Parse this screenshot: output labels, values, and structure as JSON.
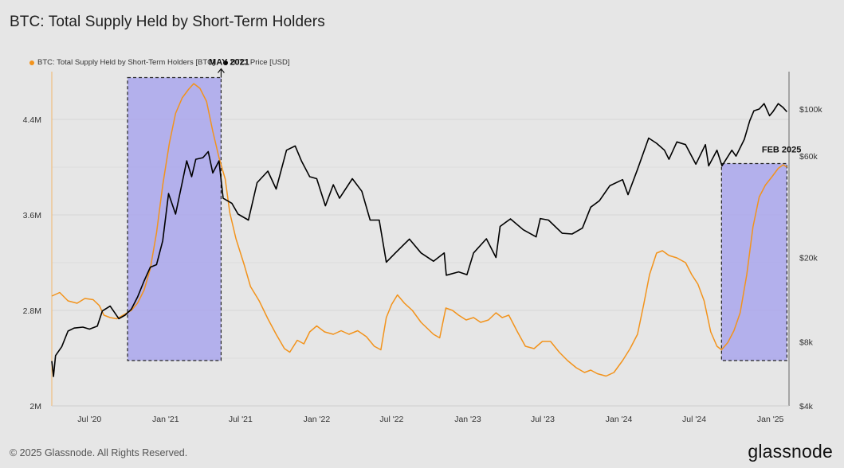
{
  "title": "BTC: Total Supply Held by Short-Term Holders",
  "footer": "© 2025 Glassnode. All Rights Reserved.",
  "brand": "glassnode",
  "colors": {
    "background": "#e6e6e6",
    "supply": "#f2931c",
    "price": "#000000",
    "highlight": "#a9a6ec"
  },
  "chart_data": {
    "type": "line",
    "title": "BTC: Total Supply Held by Short-Term Holders",
    "series": [
      {
        "name": "BTC: Total Supply Held by Short-Term Holders [BTC]",
        "axis": "left",
        "color": "#f2931c",
        "points": [
          [
            "2020-04-01",
            2.92
          ],
          [
            "2020-04-20",
            2.95
          ],
          [
            "2020-05-10",
            2.88
          ],
          [
            "2020-06-01",
            2.86
          ],
          [
            "2020-06-20",
            2.9
          ],
          [
            "2020-07-10",
            2.89
          ],
          [
            "2020-07-25",
            2.84
          ],
          [
            "2020-08-05",
            2.76
          ],
          [
            "2020-08-20",
            2.74
          ],
          [
            "2020-09-05",
            2.73
          ],
          [
            "2020-09-20",
            2.76
          ],
          [
            "2020-10-10",
            2.8
          ],
          [
            "2020-10-25",
            2.86
          ],
          [
            "2020-11-10",
            2.97
          ],
          [
            "2020-11-25",
            3.15
          ],
          [
            "2020-12-10",
            3.45
          ],
          [
            "2020-12-25",
            3.85
          ],
          [
            "2021-01-10",
            4.2
          ],
          [
            "2021-01-25",
            4.45
          ],
          [
            "2021-02-10",
            4.58
          ],
          [
            "2021-02-25",
            4.65
          ],
          [
            "2021-03-10",
            4.7
          ],
          [
            "2021-03-25",
            4.66
          ],
          [
            "2021-04-10",
            4.55
          ],
          [
            "2021-04-25",
            4.3
          ],
          [
            "2021-05-10",
            4.08
          ],
          [
            "2021-05-25",
            3.9
          ],
          [
            "2021-06-05",
            3.62
          ],
          [
            "2021-06-20",
            3.4
          ],
          [
            "2021-07-10",
            3.18
          ],
          [
            "2021-07-25",
            3.0
          ],
          [
            "2021-08-15",
            2.88
          ],
          [
            "2021-09-05",
            2.73
          ],
          [
            "2021-09-25",
            2.6
          ],
          [
            "2021-10-15",
            2.48
          ],
          [
            "2021-10-28",
            2.45
          ],
          [
            "2021-11-15",
            2.55
          ],
          [
            "2021-12-01",
            2.52
          ],
          [
            "2021-12-15",
            2.62
          ],
          [
            "2022-01-01",
            2.67
          ],
          [
            "2022-01-20",
            2.62
          ],
          [
            "2022-02-10",
            2.6
          ],
          [
            "2022-03-01",
            2.63
          ],
          [
            "2022-03-20",
            2.6
          ],
          [
            "2022-04-10",
            2.63
          ],
          [
            "2022-05-01",
            2.58
          ],
          [
            "2022-05-20",
            2.5
          ],
          [
            "2022-06-05",
            2.47
          ],
          [
            "2022-06-18",
            2.74
          ],
          [
            "2022-07-01",
            2.85
          ],
          [
            "2022-07-15",
            2.93
          ],
          [
            "2022-08-01",
            2.86
          ],
          [
            "2022-08-20",
            2.8
          ],
          [
            "2022-09-10",
            2.7
          ],
          [
            "2022-09-25",
            2.65
          ],
          [
            "2022-10-10",
            2.6
          ],
          [
            "2022-10-25",
            2.57
          ],
          [
            "2022-11-09",
            2.82
          ],
          [
            "2022-11-25",
            2.8
          ],
          [
            "2022-12-10",
            2.76
          ],
          [
            "2022-12-28",
            2.72
          ],
          [
            "2023-01-15",
            2.74
          ],
          [
            "2023-02-01",
            2.7
          ],
          [
            "2023-02-20",
            2.72
          ],
          [
            "2023-03-10",
            2.78
          ],
          [
            "2023-03-25",
            2.74
          ],
          [
            "2023-04-10",
            2.76
          ],
          [
            "2023-05-01",
            2.62
          ],
          [
            "2023-05-20",
            2.5
          ],
          [
            "2023-06-10",
            2.48
          ],
          [
            "2023-06-30",
            2.54
          ],
          [
            "2023-07-20",
            2.54
          ],
          [
            "2023-08-10",
            2.45
          ],
          [
            "2023-08-30",
            2.38
          ],
          [
            "2023-09-20",
            2.32
          ],
          [
            "2023-10-10",
            2.28
          ],
          [
            "2023-10-25",
            2.3
          ],
          [
            "2023-11-10",
            2.27
          ],
          [
            "2023-12-01",
            2.25
          ],
          [
            "2023-12-20",
            2.28
          ],
          [
            "2024-01-10",
            2.38
          ],
          [
            "2024-01-28",
            2.48
          ],
          [
            "2024-02-15",
            2.6
          ],
          [
            "2024-03-01",
            2.85
          ],
          [
            "2024-03-15",
            3.1
          ],
          [
            "2024-04-01",
            3.28
          ],
          [
            "2024-04-15",
            3.3
          ],
          [
            "2024-05-01",
            3.26
          ],
          [
            "2024-05-20",
            3.24
          ],
          [
            "2024-06-10",
            3.2
          ],
          [
            "2024-06-25",
            3.1
          ],
          [
            "2024-07-10",
            3.02
          ],
          [
            "2024-07-25",
            2.88
          ],
          [
            "2024-08-10",
            2.62
          ],
          [
            "2024-08-25",
            2.5
          ],
          [
            "2024-09-05",
            2.47
          ],
          [
            "2024-09-20",
            2.53
          ],
          [
            "2024-10-05",
            2.63
          ],
          [
            "2024-10-20",
            2.78
          ],
          [
            "2024-11-05",
            3.1
          ],
          [
            "2024-11-20",
            3.5
          ],
          [
            "2024-12-05",
            3.75
          ],
          [
            "2024-12-20",
            3.85
          ],
          [
            "2025-01-05",
            3.92
          ],
          [
            "2025-01-20",
            3.99
          ],
          [
            "2025-02-01",
            4.02
          ],
          [
            "2025-02-10",
            4.0
          ]
        ]
      },
      {
        "name": "BTC: Price [USD]",
        "axis": "right",
        "color": "#000000",
        "points": [
          [
            "2020-04-01",
            6500
          ],
          [
            "2020-04-05",
            5500
          ],
          [
            "2020-04-10",
            6900
          ],
          [
            "2020-04-25",
            7600
          ],
          [
            "2020-05-10",
            9000
          ],
          [
            "2020-05-25",
            9300
          ],
          [
            "2020-06-15",
            9400
          ],
          [
            "2020-07-01",
            9200
          ],
          [
            "2020-07-20",
            9500
          ],
          [
            "2020-08-01",
            11200
          ],
          [
            "2020-08-20",
            11800
          ],
          [
            "2020-09-10",
            10300
          ],
          [
            "2020-09-25",
            10700
          ],
          [
            "2020-10-10",
            11400
          ],
          [
            "2020-10-25",
            13000
          ],
          [
            "2020-11-10",
            15500
          ],
          [
            "2020-11-25",
            18000
          ],
          [
            "2020-12-10",
            18500
          ],
          [
            "2020-12-25",
            24000
          ],
          [
            "2021-01-08",
            40000
          ],
          [
            "2021-01-25",
            32000
          ],
          [
            "2021-02-10",
            45000
          ],
          [
            "2021-02-21",
            57000
          ],
          [
            "2021-03-05",
            48000
          ],
          [
            "2021-03-15",
            58000
          ],
          [
            "2021-04-01",
            59000
          ],
          [
            "2021-04-14",
            63000
          ],
          [
            "2021-04-25",
            50000
          ],
          [
            "2021-05-10",
            57000
          ],
          [
            "2021-05-20",
            38000
          ],
          [
            "2021-06-10",
            36000
          ],
          [
            "2021-06-25",
            32000
          ],
          [
            "2021-07-20",
            30000
          ],
          [
            "2021-08-10",
            45000
          ],
          [
            "2021-09-05",
            51000
          ],
          [
            "2021-09-25",
            42000
          ],
          [
            "2021-10-20",
            64000
          ],
          [
            "2021-11-10",
            67000
          ],
          [
            "2021-11-25",
            57000
          ],
          [
            "2021-12-15",
            48000
          ],
          [
            "2022-01-01",
            47000
          ],
          [
            "2022-01-22",
            35000
          ],
          [
            "2022-02-10",
            44000
          ],
          [
            "2022-02-25",
            38000
          ],
          [
            "2022-03-28",
            47000
          ],
          [
            "2022-04-20",
            41000
          ],
          [
            "2022-05-10",
            30000
          ],
          [
            "2022-06-01",
            30000
          ],
          [
            "2022-06-18",
            19000
          ],
          [
            "2022-07-10",
            21000
          ],
          [
            "2022-08-13",
            24400
          ],
          [
            "2022-09-10",
            21000
          ],
          [
            "2022-10-10",
            19200
          ],
          [
            "2022-11-05",
            21000
          ],
          [
            "2022-11-10",
            16500
          ],
          [
            "2022-12-10",
            17100
          ],
          [
            "2022-12-30",
            16600
          ],
          [
            "2023-01-15",
            21000
          ],
          [
            "2023-02-15",
            24500
          ],
          [
            "2023-03-10",
            20000
          ],
          [
            "2023-03-20",
            28000
          ],
          [
            "2023-04-14",
            30400
          ],
          [
            "2023-05-15",
            27000
          ],
          [
            "2023-06-15",
            25000
          ],
          [
            "2023-06-25",
            30500
          ],
          [
            "2023-07-15",
            30000
          ],
          [
            "2023-08-17",
            26000
          ],
          [
            "2023-09-10",
            25800
          ],
          [
            "2023-10-05",
            27500
          ],
          [
            "2023-10-25",
            34500
          ],
          [
            "2023-11-15",
            37000
          ],
          [
            "2023-12-10",
            43500
          ],
          [
            "2024-01-10",
            46500
          ],
          [
            "2024-01-23",
            39500
          ],
          [
            "2024-02-15",
            52000
          ],
          [
            "2024-03-13",
            73000
          ],
          [
            "2024-04-01",
            69000
          ],
          [
            "2024-04-20",
            64000
          ],
          [
            "2024-05-01",
            58000
          ],
          [
            "2024-05-20",
            70000
          ],
          [
            "2024-06-10",
            68000
          ],
          [
            "2024-07-05",
            55000
          ],
          [
            "2024-07-28",
            68000
          ],
          [
            "2024-08-05",
            54000
          ],
          [
            "2024-08-25",
            64000
          ],
          [
            "2024-09-06",
            54000
          ],
          [
            "2024-09-30",
            64000
          ],
          [
            "2024-10-10",
            60000
          ],
          [
            "2024-10-30",
            72000
          ],
          [
            "2024-11-12",
            88000
          ],
          [
            "2024-11-22",
            98000
          ],
          [
            "2024-12-05",
            100000
          ],
          [
            "2024-12-17",
            106000
          ],
          [
            "2024-12-30",
            93000
          ],
          [
            "2025-01-07",
            97000
          ],
          [
            "2025-01-20",
            106000
          ],
          [
            "2025-01-31",
            102000
          ],
          [
            "2025-02-10",
            97000
          ]
        ]
      }
    ],
    "y_left": {
      "ticks": [
        "2M",
        "2.8M",
        "3.6M",
        "4.4M"
      ],
      "tick_values": [
        2.0,
        2.8,
        3.6,
        4.4
      ],
      "range": [
        2.0,
        4.8
      ]
    },
    "y_right": {
      "scale": "log",
      "ticks": [
        "$4k",
        "$8k",
        "$20k",
        "$60k",
        "$100k"
      ],
      "tick_values": [
        4000,
        8000,
        20000,
        60000,
        100000
      ],
      "range": [
        4000,
        150000
      ]
    },
    "x": {
      "range": [
        "2020-04-01",
        "2025-02-15"
      ],
      "ticks": [
        {
          "label": "Jul '20",
          "date": "2020-07-01"
        },
        {
          "label": "Jan '21",
          "date": "2021-01-01"
        },
        {
          "label": "Jul '21",
          "date": "2021-07-01"
        },
        {
          "label": "Jan '22",
          "date": "2022-01-01"
        },
        {
          "label": "Jul '22",
          "date": "2022-07-01"
        },
        {
          "label": "Jan '23",
          "date": "2023-01-01"
        },
        {
          "label": "Jul '23",
          "date": "2023-07-01"
        },
        {
          "label": "Jan '24",
          "date": "2024-01-01"
        },
        {
          "label": "Jul '24",
          "date": "2024-07-01"
        },
        {
          "label": "Jan '25",
          "date": "2025-01-01"
        }
      ]
    },
    "highlights": [
      {
        "start": "2020-10-01",
        "end": "2021-05-15",
        "label": "MAY 2021",
        "top_supply": 4.75,
        "bottom_supply": 2.38
      },
      {
        "start": "2024-09-05",
        "end": "2025-02-10",
        "label": "FEB 2025",
        "top_supply": 4.03,
        "bottom_supply": 2.38
      }
    ],
    "grid": true,
    "legend_position": "top-left"
  }
}
